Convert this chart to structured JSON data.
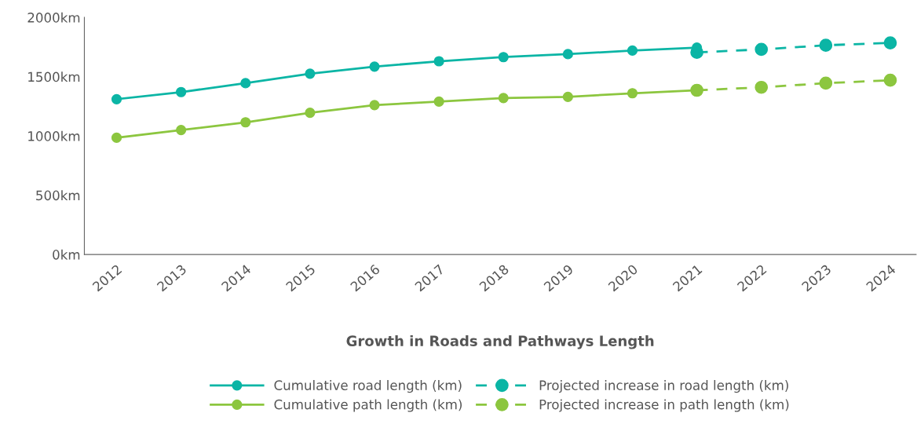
{
  "chart_data": {
    "type": "line",
    "title": "Growth in Roads and Pathways Length",
    "categories": [
      "2012",
      "2013",
      "2014",
      "2015",
      "2016",
      "2017",
      "2018",
      "2019",
      "2020",
      "2021",
      "2022",
      "2023",
      "2024"
    ],
    "series": [
      {
        "name": "Cumulative road length (km)",
        "color": "#0bb5a5",
        "line_style": "solid",
        "values": [
          1310,
          1370,
          1445,
          1525,
          1585,
          1630,
          1665,
          1690,
          1720,
          1745,
          null,
          null,
          null
        ]
      },
      {
        "name": "Cumulative path length (km)",
        "color": "#8cc63f",
        "line_style": "solid",
        "values": [
          985,
          1050,
          1115,
          1195,
          1260,
          1290,
          1320,
          1330,
          1360,
          1385,
          null,
          null,
          null
        ]
      },
      {
        "name": "Projected increase in road length (km)",
        "color": "#0bb5a5",
        "line_style": "dashed",
        "values": [
          null,
          null,
          null,
          null,
          null,
          null,
          null,
          null,
          null,
          1705,
          1730,
          1765,
          1785
        ]
      },
      {
        "name": "Projected increase in path length (km)",
        "color": "#8cc63f",
        "line_style": "dashed",
        "values": [
          null,
          null,
          null,
          null,
          null,
          null,
          null,
          null,
          null,
          1385,
          1410,
          1445,
          1470
        ]
      }
    ],
    "ylim": [
      0,
      2000
    ],
    "yticks": [
      {
        "value": 0,
        "label": "0km"
      },
      {
        "value": 500,
        "label": "500km"
      },
      {
        "value": 1000,
        "label": "1000km"
      },
      {
        "value": 1500,
        "label": "1500km"
      },
      {
        "value": 2000,
        "label": "2000km"
      }
    ],
    "marker": "circle",
    "grid": false,
    "legend": "bottom"
  }
}
